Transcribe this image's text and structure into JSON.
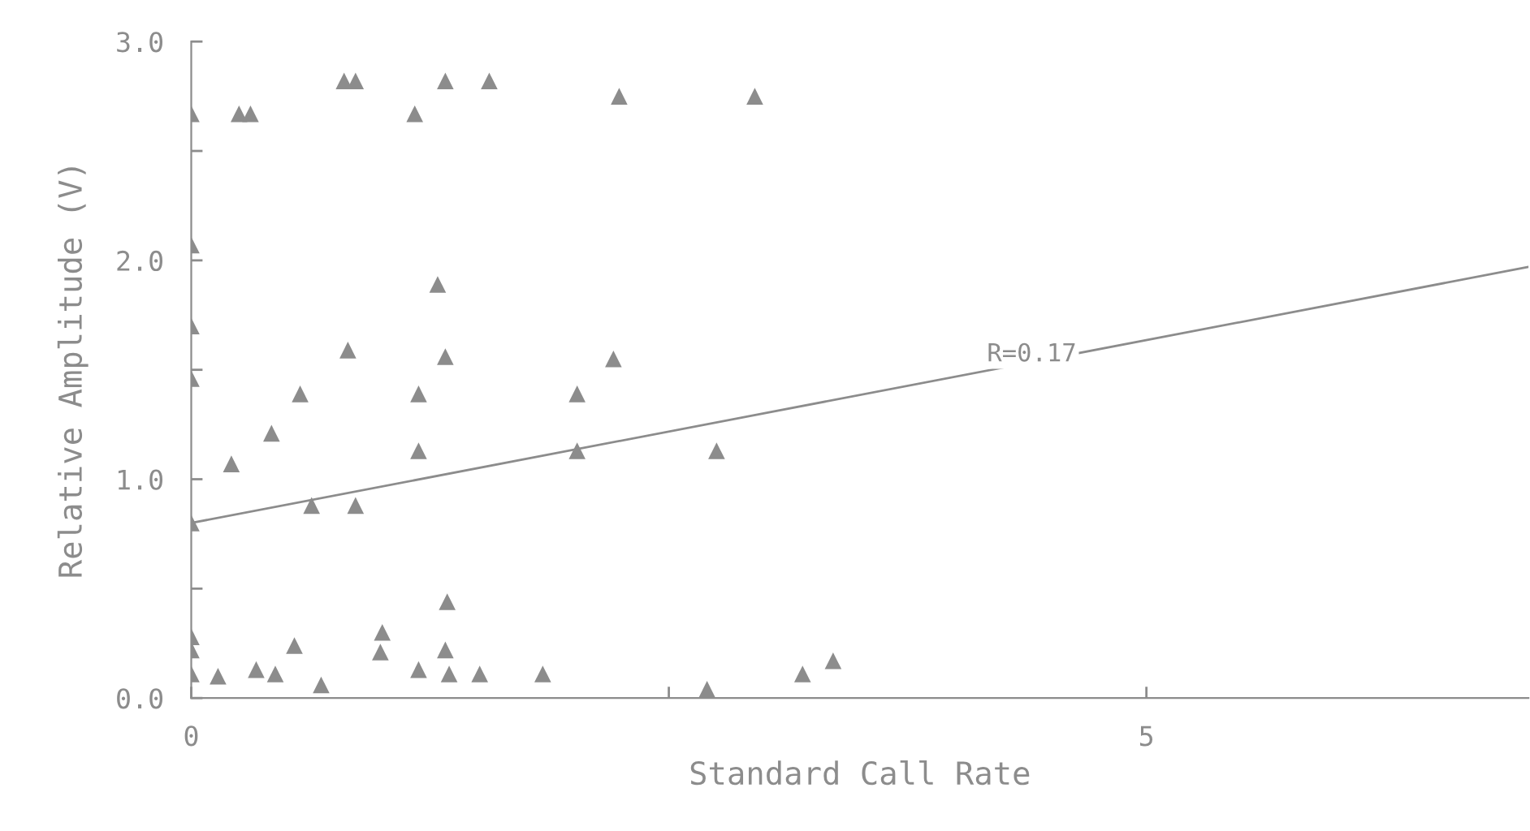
{
  "chart_data": {
    "type": "scatter",
    "xlabel": "Standard Call Rate",
    "ylabel": "Relative Amplitude (V)",
    "xlim": [
      0,
      7
    ],
    "ylim": [
      0,
      3
    ],
    "xticks": [
      0,
      {
        "value": 2.5,
        "label": null
      },
      5
    ],
    "yticks": [
      {
        "value": 0,
        "label": "0.0"
      },
      {
        "value": 0.5,
        "label": null
      },
      {
        "value": 1,
        "label": "1.0"
      },
      {
        "value": 1.5,
        "label": null
      },
      {
        "value": 2,
        "label": "2.0"
      },
      {
        "value": 2.5,
        "label": null
      },
      {
        "value": 3,
        "label": "3.0"
      }
    ],
    "grid": false,
    "legend": false,
    "annotations": [
      {
        "text": "R=0.17",
        "x": 4.4,
        "y": 1.57
      }
    ],
    "series": [
      {
        "marker": "triangle",
        "color": "#8c8c8c",
        "x": [
          0,
          0.25,
          0.31,
          0.8,
          0.86,
          1.17,
          1.33,
          1.56,
          2.24,
          2.95,
          0,
          0,
          0,
          1.29,
          0.82,
          1.33,
          2.21,
          0.57,
          1.19,
          2.02,
          0.42,
          0.21,
          1.19,
          2.02,
          2.75,
          0,
          0.63,
          0.86,
          1.34,
          0,
          0,
          0,
          0.14,
          0.34,
          0.44,
          0.54,
          0.68,
          1.0,
          0.99,
          1.19,
          1.33,
          1.35,
          1.51,
          1.84,
          2.7,
          3.2,
          3.36
        ],
        "values": [
          2.67,
          2.67,
          2.67,
          2.82,
          2.82,
          2.67,
          2.82,
          2.82,
          2.75,
          2.75,
          2.07,
          1.7,
          1.46,
          1.89,
          1.59,
          1.56,
          1.55,
          1.39,
          1.39,
          1.39,
          1.21,
          1.07,
          1.13,
          1.13,
          1.13,
          0.8,
          0.88,
          0.88,
          0.44,
          0.28,
          0.22,
          0.11,
          0.1,
          0.13,
          0.11,
          0.24,
          0.06,
          0.3,
          0.21,
          0.13,
          0.22,
          0.11,
          0.11,
          0.11,
          0.04,
          0.11,
          0.17
        ]
      },
      {
        "type": "line",
        "color": "#8c8c8c",
        "x": [
          0,
          7
        ],
        "values": [
          0.8,
          1.97
        ]
      }
    ]
  }
}
